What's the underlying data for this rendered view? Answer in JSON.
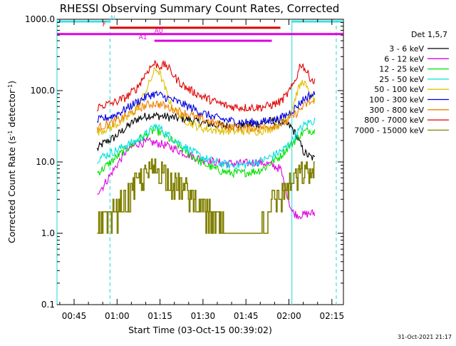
{
  "chart_data": {
    "type": "line",
    "title": "RHESSI Observing Summary Count Rates, Corrected",
    "xlabel": "Start Time (03-Oct-15 00:39:02)",
    "ylabel_parts": [
      "Corrected Count Rate (s",
      "-1",
      " detector",
      "-1",
      ")"
    ],
    "yscale": "log",
    "ylim": [
      0.1,
      1000
    ],
    "ytick_labels": [
      "0.1",
      "1.0",
      "10.0",
      "100.0",
      "1000.0"
    ],
    "ytick_values": [
      0.1,
      1,
      10,
      100,
      1000
    ],
    "x_unit": "minutes after 00:39:02",
    "xlim": [
      0,
      100
    ],
    "xtick_labels": [
      "00:45",
      "01:00",
      "01:15",
      "01:30",
      "01:45",
      "02:00",
      "02:15"
    ],
    "xtick_values": [
      5.97,
      20.97,
      35.97,
      50.97,
      65.97,
      80.97,
      95.97
    ],
    "legend_title": "Det 1,5,7",
    "legend_position": "outside-right",
    "series": [
      {
        "name": "3 - 6 keV",
        "color": "#000000",
        "x": [
          14,
          16,
          20,
          24,
          28,
          32,
          36,
          40,
          45,
          50,
          55,
          60,
          65,
          70,
          73,
          75,
          78,
          80,
          82,
          84,
          86,
          88,
          90
        ],
        "y": [
          15,
          18,
          22,
          30,
          40,
          45,
          44,
          42,
          40,
          36,
          33,
          32,
          32,
          34,
          36,
          38,
          36,
          34,
          30,
          22,
          14,
          12,
          11
        ]
      },
      {
        "name": "6 - 12 keV",
        "color": "#e000e0",
        "x": [
          14,
          16,
          20,
          24,
          28,
          32,
          36,
          40,
          45,
          50,
          55,
          60,
          65,
          70,
          73,
          75,
          78,
          80,
          82,
          84,
          86,
          88,
          90
        ],
        "y": [
          3.8,
          4.5,
          8,
          14,
          18,
          19,
          18,
          16,
          13,
          11,
          10,
          9.5,
          9.5,
          10,
          9.5,
          9,
          8,
          4,
          2,
          1.8,
          1.8,
          1.9,
          1.9
        ]
      },
      {
        "name": "12 - 25 keV",
        "color": "#00e000",
        "x": [
          14,
          16,
          20,
          24,
          28,
          32,
          34,
          36,
          40,
          45,
          50,
          55,
          60,
          65,
          70,
          73,
          75,
          78,
          80,
          82,
          84,
          86,
          88,
          90
        ],
        "y": [
          7,
          8,
          11,
          15,
          20,
          25,
          28,
          26,
          20,
          14,
          10,
          8,
          7,
          7,
          7.5,
          8.5,
          10,
          12,
          15,
          18,
          22,
          26,
          28,
          27
        ]
      },
      {
        "name": "25 - 50 keV",
        "color": "#00e0e0",
        "x": [
          14,
          16,
          20,
          24,
          28,
          32,
          34,
          36,
          38,
          40,
          45,
          50,
          55,
          60,
          65,
          70,
          73,
          75,
          78,
          80,
          82,
          84,
          86,
          88,
          90
        ],
        "y": [
          11,
          12,
          14,
          17,
          20,
          26,
          32,
          30,
          25,
          22,
          16,
          12,
          10,
          9,
          9,
          10,
          11,
          12,
          14,
          16,
          20,
          26,
          32,
          36,
          38
        ]
      },
      {
        "name": "50 - 100 keV",
        "color": "#e0c000",
        "x": [
          14,
          16,
          20,
          24,
          28,
          32,
          34,
          35,
          36,
          38,
          40,
          45,
          50,
          55,
          60,
          65,
          70,
          73,
          75,
          78,
          80,
          82,
          84,
          86,
          88,
          90
        ],
        "y": [
          26,
          28,
          32,
          40,
          55,
          120,
          190,
          200,
          170,
          100,
          60,
          38,
          30,
          28,
          27,
          27,
          27,
          28,
          30,
          35,
          40,
          55,
          100,
          140,
          90,
          70
        ]
      },
      {
        "name": "100 - 300 keV",
        "color": "#0000e0",
        "x": [
          14,
          16,
          20,
          24,
          28,
          32,
          34,
          36,
          38,
          40,
          45,
          50,
          55,
          60,
          65,
          70,
          73,
          75,
          78,
          80,
          82,
          84,
          86,
          88,
          90
        ],
        "y": [
          38,
          40,
          45,
          55,
          70,
          85,
          90,
          86,
          80,
          75,
          62,
          50,
          42,
          38,
          36,
          36,
          37,
          38,
          41,
          45,
          52,
          62,
          75,
          85,
          88
        ]
      },
      {
        "name": "300 - 800 keV",
        "color": "#f08000",
        "x": [
          14,
          16,
          20,
          24,
          28,
          32,
          34,
          36,
          38,
          40,
          45,
          50,
          55,
          60,
          65,
          70,
          73,
          75,
          78,
          80,
          82,
          84,
          86,
          88,
          90
        ],
        "y": [
          30,
          32,
          36,
          44,
          55,
          64,
          66,
          64,
          60,
          56,
          48,
          40,
          35,
          31,
          30,
          30,
          31,
          32,
          34,
          37,
          42,
          50,
          60,
          68,
          70
        ]
      },
      {
        "name": "800 - 7000 keV",
        "color": "#e00000",
        "x": [
          14,
          16,
          20,
          24,
          28,
          30,
          32,
          34,
          35,
          36,
          38,
          40,
          42,
          45,
          50,
          55,
          60,
          65,
          70,
          73,
          75,
          78,
          80,
          82,
          84,
          85,
          86,
          88,
          90
        ],
        "y": [
          58,
          62,
          68,
          80,
          110,
          150,
          200,
          240,
          230,
          220,
          230,
          180,
          140,
          110,
          85,
          70,
          60,
          58,
          58,
          60,
          63,
          70,
          85,
          110,
          170,
          240,
          220,
          160,
          130
        ]
      },
      {
        "name": "7000 - 15000 keV",
        "color": "#808000",
        "x": [
          14,
          16,
          18,
          20,
          22,
          24,
          26,
          28,
          30,
          32,
          34,
          36,
          38,
          40,
          42,
          45,
          48,
          50,
          55,
          60,
          65,
          70,
          73,
          75,
          78,
          80,
          82,
          84,
          86,
          88,
          90
        ],
        "y": [
          1,
          1.3,
          1.6,
          2,
          2.5,
          3,
          4,
          5,
          6,
          7,
          8,
          8,
          7,
          6,
          5,
          4,
          3,
          2.5,
          1.5,
          1,
          1,
          1,
          1.6,
          2.5,
          3.5,
          4,
          5,
          6,
          7,
          7,
          7
        ]
      }
    ],
    "vertical_lines": [
      {
        "x": 0.0,
        "style": "solid",
        "color": "#40e0e0"
      },
      {
        "x": 18.5,
        "style": "dashed",
        "color": "#40e0e0"
      },
      {
        "x": 82.0,
        "style": "solid",
        "color": "#40e0e0"
      },
      {
        "x": 97.5,
        "style": "dashed",
        "color": "#40e0e0"
      }
    ],
    "status_bars": [
      {
        "label": "N",
        "color": "#40e0e0",
        "segments": [
          [
            0,
            18.5
          ],
          [
            82,
            100
          ]
        ],
        "level": 930,
        "label_x": 19.5
      },
      {
        "label": "F",
        "color": "#e00000",
        "segments": [
          [
            18.5,
            78
          ]
        ],
        "level": 760,
        "label_x": 16.5
      },
      {
        "label": "A0",
        "color": "#e000e0",
        "segments": [
          [
            0,
            100
          ]
        ],
        "level": 620,
        "label_x": 35.5
      },
      {
        "label": "A1",
        "color": "#e000e0",
        "segments": [
          [
            34,
            75
          ]
        ],
        "level": 500,
        "label_x": 30.0
      }
    ]
  },
  "footer": {
    "timestamp": "31-Oct-2021 21:17"
  }
}
